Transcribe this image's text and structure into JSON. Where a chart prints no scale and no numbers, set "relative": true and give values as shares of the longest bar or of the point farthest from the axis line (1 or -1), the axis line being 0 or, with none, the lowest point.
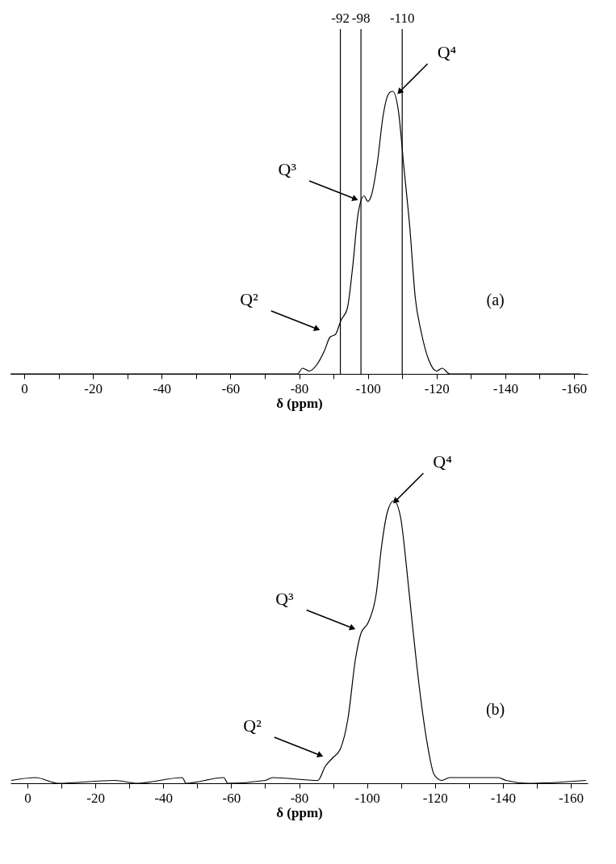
{
  "chart_data": [
    {
      "type": "line",
      "relative": true,
      "xlabel": "δ (ppm)",
      "tick_labels": "x",
      "xlim": [
        4,
        -164
      ],
      "xticks": [
        0,
        {
          "value": -10,
          "label": null
        },
        -20,
        {
          "value": -30,
          "label": null
        },
        -40,
        {
          "value": -50,
          "label": null
        },
        -60,
        {
          "value": -70,
          "label": null
        },
        -80,
        {
          "value": -90,
          "label": null
        },
        -100,
        {
          "value": -110,
          "label": null
        },
        -120,
        {
          "value": -130,
          "label": null
        },
        -140,
        {
          "value": -150,
          "label": null
        },
        -160
      ],
      "x": [
        4,
        -30,
        -60,
        -79.5,
        -81,
        -83,
        -85,
        -87.3,
        -89,
        -90.6,
        -92.2,
        -94,
        -95.6,
        -97.2,
        -98.9,
        -100,
        -101,
        -102.8,
        -104.4,
        -106,
        -107.2,
        -108.9,
        -110.5,
        -112.2,
        -113.8,
        -115.5,
        -117.7,
        -120,
        -121.6,
        -123.8,
        -140,
        -162
      ],
      "series": [
        {
          "color": "#000000",
          "values": [
            0,
            0,
            0,
            0,
            0.02,
            0.01,
            0.03,
            0.08,
            0.13,
            0.14,
            0.19,
            0.23,
            0.38,
            0.57,
            0.63,
            0.61,
            0.63,
            0.75,
            0.91,
            0.99,
            1,
            0.93,
            0.73,
            0.52,
            0.27,
            0.15,
            0.05,
            0.01,
            0.02,
            0,
            0,
            0
          ]
        }
      ],
      "ref_lines": [
        {
          "axis": "x",
          "value": -92,
          "label": "-92"
        },
        {
          "axis": "x",
          "value": -98,
          "label": "-98"
        },
        {
          "axis": "x",
          "value": -110,
          "label": "-110"
        }
      ],
      "annotations": [
        {
          "text": "Q²",
          "x": -85,
          "y": 0.16
        },
        {
          "text": "Q³",
          "x": -96.1,
          "y": 0.62
        },
        {
          "text": "Q⁴",
          "x": -109.4,
          "y": 1
        },
        "(a)"
      ]
    },
    {
      "type": "line",
      "relative": true,
      "xlabel": "δ (ppm)",
      "tick_labels": "x",
      "xlim": [
        5,
        -165
      ],
      "xticks": [
        0,
        {
          "value": -10,
          "label": null
        },
        -20,
        {
          "value": -30,
          "label": null
        },
        -40,
        {
          "value": -50,
          "label": null
        },
        -60,
        {
          "value": -70,
          "label": null
        },
        -80,
        {
          "value": -90,
          "label": null
        },
        -100,
        {
          "value": -110,
          "label": null
        },
        -120,
        {
          "value": -130,
          "label": null
        },
        -140,
        {
          "value": -150,
          "label": null
        },
        -160
      ],
      "x": [
        4.8,
        -2.4,
        -9,
        -25.7,
        -32.3,
        -45.6,
        -46.7,
        -57.8,
        -59,
        -70,
        -72.2,
        -85.5,
        -87.7,
        -89.9,
        -92.1,
        -94.4,
        -96.6,
        -98.2,
        -100.4,
        -102.7,
        -104.3,
        -106,
        -107.9,
        -109.9,
        -111.5,
        -113.2,
        -115.4,
        -117.6,
        -119.8,
        -122,
        -124.3,
        -129.8,
        -138.7,
        -140.9,
        -147.5,
        -164.5
      ],
      "series": [
        {
          "color": "#000000",
          "values": [
            0.01,
            0.02,
            0,
            0.01,
            0,
            0.02,
            0,
            0.02,
            0,
            0.01,
            0.02,
            0.01,
            0.06,
            0.09,
            0.12,
            0.23,
            0.44,
            0.53,
            0.57,
            0.67,
            0.84,
            0.96,
            1,
            0.94,
            0.78,
            0.58,
            0.34,
            0.15,
            0.03,
            0.01,
            0.02,
            0.02,
            0.02,
            0.01,
            0,
            0.01
          ]
        }
      ],
      "annotations": [
        {
          "text": "Q²",
          "x": -86,
          "y": 0.1
        },
        {
          "text": "Q³",
          "x": -95.5,
          "y": 0.55
        },
        {
          "text": "Q⁴",
          "x": -108.5,
          "y": 1
        },
        "(b)"
      ]
    }
  ]
}
